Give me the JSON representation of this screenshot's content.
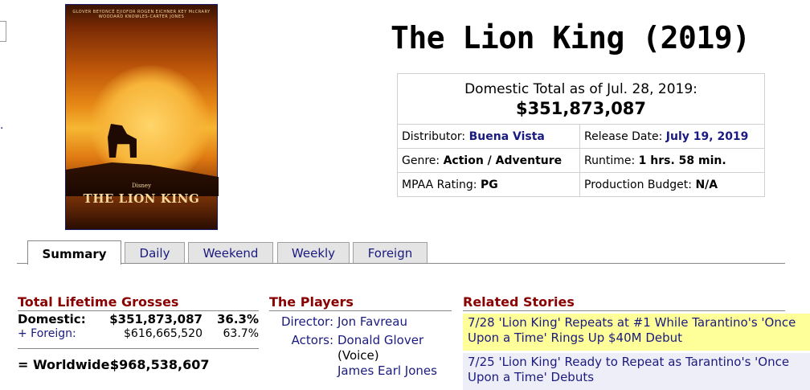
{
  "poster": {
    "credits": "GLOVER BEYONCÉ EJIOFOR ROGEN EICHNER KEY McCRARY WOODARD KNOWLES-CARTER JONES",
    "disney": "Disney",
    "title": "THE LION KING"
  },
  "movie": {
    "title": "The Lion King (2019)"
  },
  "info": {
    "domestic_label": "Domestic Total as of Jul. 28, 2019:",
    "domestic_total": "$351,873,087",
    "distributor_label": "Distributor:",
    "distributor_value": "Buena Vista",
    "release_label": "Release Date:",
    "release_value": "July 19, 2019",
    "genre_label": "Genre:",
    "genre_value": "Action / Adventure",
    "runtime_label": "Runtime:",
    "runtime_value": "1 hrs. 58 min.",
    "mpaa_label": "MPAA Rating:",
    "mpaa_value": "PG",
    "budget_label": "Production Budget:",
    "budget_value": "N/A"
  },
  "tabs": [
    "Summary",
    "Daily",
    "Weekend",
    "Weekly",
    "Foreign"
  ],
  "grosses": {
    "title": "Total Lifetime Grosses",
    "domestic_label": "Domestic:",
    "domestic_value": "$351,873,087",
    "domestic_pct": "36.3%",
    "foreign_label": "+ Foreign:",
    "foreign_value": "$616,665,520",
    "foreign_pct": "63.7%",
    "worldwide_label": "= Worldwide:",
    "worldwide_value": "$968,538,607"
  },
  "players": {
    "title": "The Players",
    "director_label": "Director:",
    "director_value": "Jon Favreau",
    "actors_label": "Actors:",
    "actor1": "Donald Glover",
    "actor1_note": "(Voice)",
    "actor2": "James Earl Jones"
  },
  "stories": {
    "title": "Related Stories",
    "items": [
      "7/28 'Lion King' Repeats at #1 While Tarantino's 'Once Upon a Time' Rings Up $40M Debut",
      "7/25 'Lion King' Ready to Repeat as Tarantino's 'Once Upon a Time' Debuts"
    ]
  }
}
